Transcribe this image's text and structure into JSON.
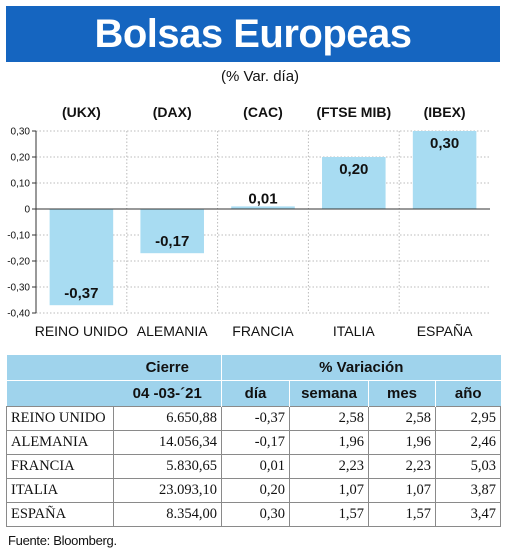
{
  "title": "Bolsas Europeas",
  "subtitle": "(% Var. día)",
  "colors": {
    "title_bg": "#1565c0",
    "bar": "#a8dcf2",
    "table_header": "#9fd3ec"
  },
  "chart_data": {
    "type": "bar",
    "title": "Bolsas Europeas",
    "subtitle": "(% Var. día)",
    "categories": [
      "REINO UNIDO",
      "ALEMANIA",
      "FRANCIA",
      "ITALIA",
      "ESPAÑA"
    ],
    "index_labels": [
      "(UKX)",
      "(DAX)",
      "(CAC)",
      "(FTSE MIB)",
      "(IBEX)"
    ],
    "values": [
      -0.37,
      -0.17,
      0.01,
      0.2,
      0.3
    ],
    "value_labels": [
      "-0,37",
      "-0,17",
      "0,01",
      "0,20",
      "0,30"
    ],
    "yticks": [
      0.3,
      0.2,
      0.1,
      0,
      -0.1,
      -0.2,
      -0.3,
      -0.4
    ],
    "ytick_labels": [
      "0,30",
      "0,20",
      "0,10",
      "0",
      "-0,10",
      "-0,20",
      "-0,30",
      "-0,40"
    ],
    "ylim": [
      -0.4,
      0.3
    ],
    "grid": true,
    "xlabel": "",
    "ylabel": ""
  },
  "table": {
    "header1": {
      "cierre": "Cierre",
      "variacion": "% Variación"
    },
    "header2": {
      "fecha": "04 -03-´21",
      "dia": "día",
      "semana": "semana",
      "mes": "mes",
      "ano": "año"
    },
    "rows": [
      {
        "pais": "REINO UNIDO",
        "cierre": "6.650,88",
        "dia": "-0,37",
        "semana": "2,58",
        "mes": "2,58",
        "ano": "2,95"
      },
      {
        "pais": "ALEMANIA",
        "cierre": "14.056,34",
        "dia": "-0,17",
        "semana": "1,96",
        "mes": "1,96",
        "ano": "2,46"
      },
      {
        "pais": "FRANCIA",
        "cierre": "5.830,65",
        "dia": "0,01",
        "semana": "2,23",
        "mes": "2,23",
        "ano": "5,03"
      },
      {
        "pais": "ITALIA",
        "cierre": "23.093,10",
        "dia": "0,20",
        "semana": "1,07",
        "mes": "1,07",
        "ano": "3,87"
      },
      {
        "pais": "ESPAÑA",
        "cierre": "8.354,00",
        "dia": "0,30",
        "semana": "1,57",
        "mes": "1,57",
        "ano": "3,47"
      }
    ]
  },
  "source": "Fuente: Bloomberg."
}
